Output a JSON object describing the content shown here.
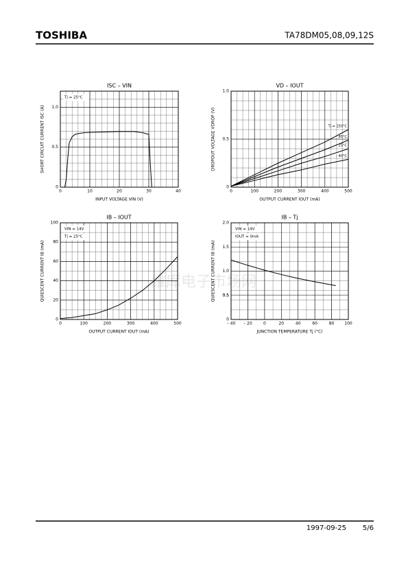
{
  "header": {
    "brand": "TOSHIBA",
    "part": "TA78DM05,08,09,12S"
  },
  "watermark": "维库电子市场网",
  "footer": {
    "date": "1997-09-25",
    "page": "5/6"
  },
  "chart_data": [
    {
      "type": "line",
      "title": "ISC – VIN",
      "xlabel": "INPUT VOLTAGE   VIN   (V)",
      "ylabel": "SHORT CIRCUIT CURRENT   ISC   (A)",
      "annotations": [
        "Tj = 25°C"
      ],
      "xlim": [
        0,
        40
      ],
      "ylim": [
        0,
        1.2
      ],
      "xticks": [
        0,
        10,
        20,
        30,
        40
      ],
      "yticks": [
        0,
        0.5,
        {
          "value": 1,
          "label": "1.0"
        }
      ],
      "minor_grid": [
        2,
        0.1
      ],
      "series": [
        {
          "name": null,
          "color": "#000000",
          "x": [
            0,
            1.5,
            2,
            2.5,
            3,
            4,
            5,
            6,
            8,
            10,
            15,
            20,
            25,
            28,
            30,
            30.5,
            31,
            40
          ],
          "values": [
            0,
            0,
            0.1,
            0.35,
            0.55,
            0.63,
            0.66,
            0.67,
            0.68,
            0.685,
            0.69,
            0.695,
            0.695,
            0.68,
            0.66,
            0.3,
            0,
            0
          ]
        }
      ]
    },
    {
      "type": "line",
      "title": "VD – IOUT",
      "xlabel": "OUTPUT CURRENT   IOUT   (mA)",
      "ylabel": "DROPOUT VOLTAGE   VDROP   (V)",
      "annotations": [],
      "xlim": [
        0,
        500
      ],
      "ylim": [
        0,
        1
      ],
      "xticks": [
        0,
        100,
        200,
        300,
        400,
        500
      ],
      "yticks": [
        0,
        0.5,
        {
          "value": 1,
          "label": "1.0"
        }
      ],
      "minor_grid": [
        25,
        0.1
      ],
      "series": [
        {
          "name": "Tj = 150°C",
          "color": "#000000",
          "x": [
            0,
            100,
            200,
            300,
            400,
            500
          ],
          "values": [
            0.01,
            0.13,
            0.25,
            0.36,
            0.47,
            0.6
          ]
        },
        {
          "name": "85°C",
          "color": "#000000",
          "x": [
            0,
            100,
            200,
            300,
            400,
            500
          ],
          "values": [
            0.01,
            0.11,
            0.21,
            0.3,
            0.39,
            0.49
          ]
        },
        {
          "name": "25°C",
          "color": "#000000",
          "x": [
            0,
            100,
            200,
            300,
            400,
            500
          ],
          "values": [
            0.01,
            0.09,
            0.17,
            0.25,
            0.32,
            0.4
          ]
        },
        {
          "name": "– 40°C",
          "color": "#000000",
          "x": [
            0,
            100,
            200,
            300,
            400,
            500
          ],
          "values": [
            0.01,
            0.07,
            0.13,
            0.18,
            0.24,
            0.29
          ]
        }
      ]
    },
    {
      "type": "line",
      "title": "IB – IOUT",
      "xlabel": "OUTPUT CURRENT   IOUT   (mA)",
      "ylabel": "QUIESCENT CURRENT   IB   (mA)",
      "annotations": [
        "VIN = 14V",
        "Tj = 25°C"
      ],
      "xlim": [
        0,
        500
      ],
      "ylim": [
        0,
        100
      ],
      "xticks": [
        0,
        100,
        200,
        300,
        400,
        500
      ],
      "yticks": [
        0,
        20,
        40,
        60,
        80,
        100
      ],
      "minor_grid": [
        25,
        10
      ],
      "series": [
        {
          "name": null,
          "color": "#000000",
          "x": [
            0,
            50,
            100,
            150,
            200,
            250,
            300,
            350,
            400,
            450,
            500
          ],
          "values": [
            1,
            2,
            4,
            6,
            10,
            15,
            22,
            30,
            40,
            52,
            65
          ]
        }
      ]
    },
    {
      "type": "line",
      "title": "IB – Tj",
      "xlabel": "JUNCTION TEMPERATURE   Tj   (°C)",
      "ylabel": "QUIESCENT CURRENT   IB   (mA)",
      "annotations": [
        "VIN = 14V",
        "IOUT = 0mA"
      ],
      "xlim": [
        -40,
        100
      ],
      "ylim": [
        0,
        2
      ],
      "xticks": [
        {
          "value": -40,
          "label": "– 40"
        },
        {
          "value": -20,
          "label": "– 20"
        },
        0,
        20,
        40,
        60,
        80,
        100
      ],
      "yticks": [
        0,
        0.5,
        {
          "value": 1,
          "label": "1.0"
        },
        0.5,
        1.5,
        {
          "value": 2,
          "label": "2.0"
        }
      ],
      "minor_grid": [
        10,
        0.2
      ],
      "series": [
        {
          "name": null,
          "color": "#000000",
          "x": [
            -40,
            -20,
            0,
            20,
            40,
            60,
            85
          ],
          "values": [
            1.23,
            1.12,
            1.02,
            0.93,
            0.85,
            0.78,
            0.7
          ]
        }
      ]
    }
  ]
}
